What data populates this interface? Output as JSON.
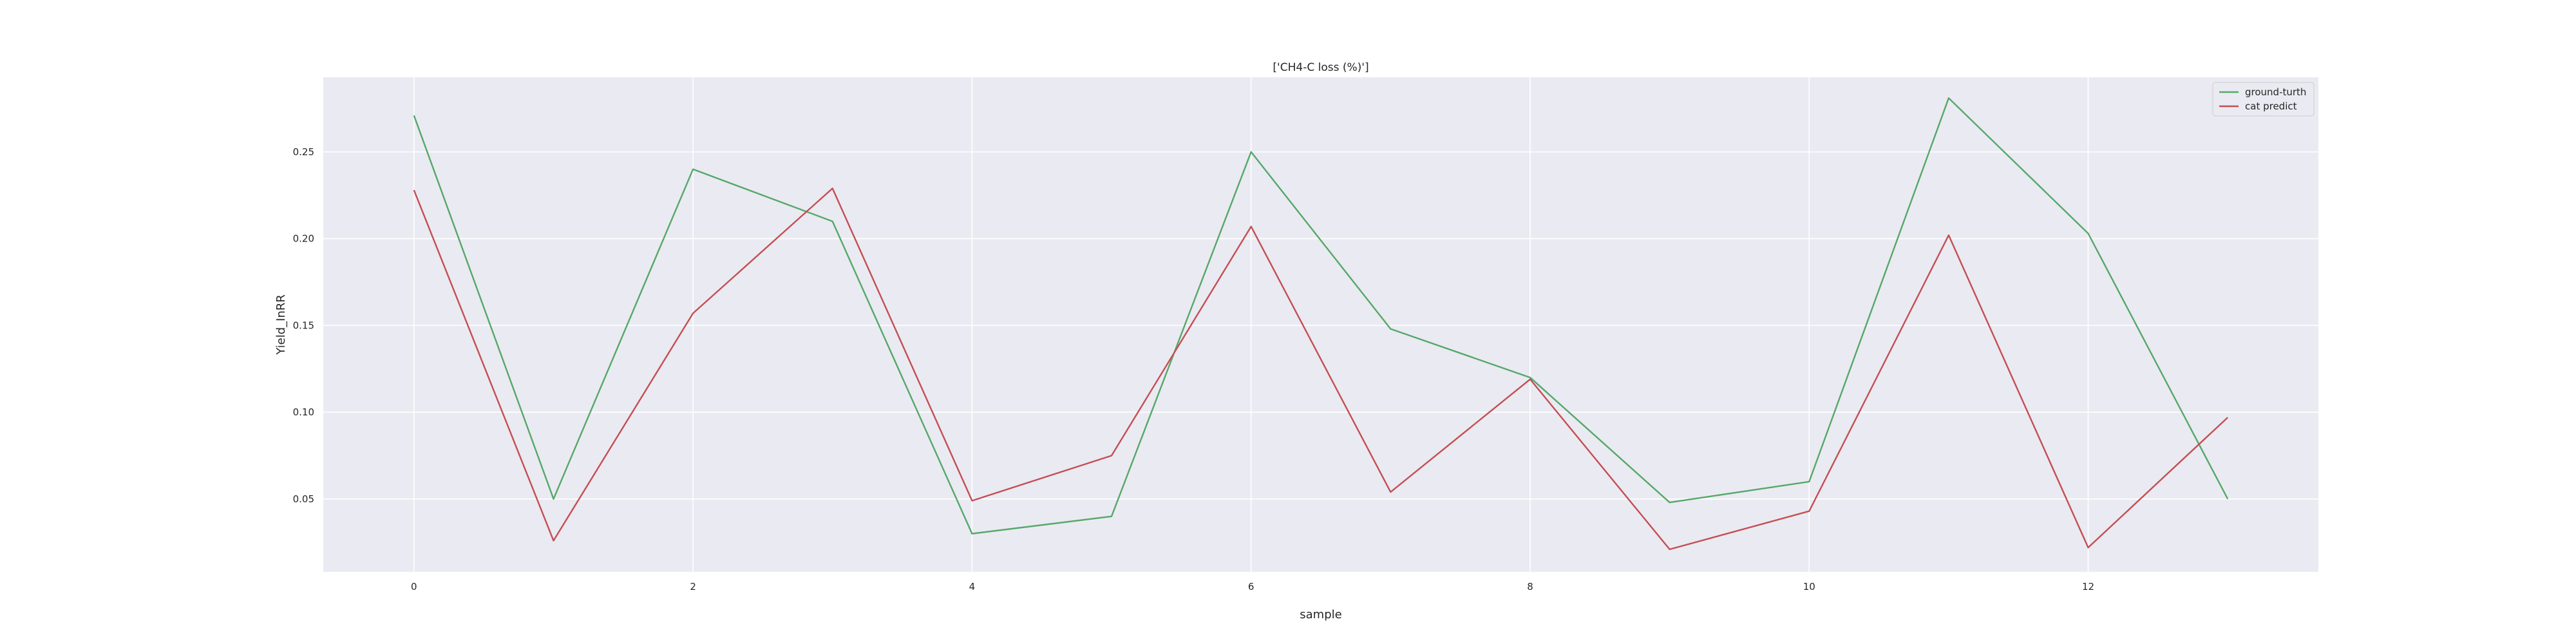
{
  "chart_data": {
    "type": "line",
    "title": "['CH4-C loss (%)']",
    "xlabel": "sample",
    "ylabel": "Yield_InRR",
    "xlim": [
      -0.65,
      13.65
    ],
    "ylim": [
      0.008,
      0.293
    ],
    "xticks": [
      0,
      2,
      4,
      6,
      8,
      10,
      12
    ],
    "xtick_labels": [
      "0",
      "2",
      "4",
      "6",
      "8",
      "10",
      "12"
    ],
    "yticks": [
      0.05,
      0.1,
      0.15,
      0.2,
      0.25
    ],
    "ytick_labels": [
      "0.05",
      "0.10",
      "0.15",
      "0.20",
      "0.25"
    ],
    "grid": true,
    "legend_position": "top-right",
    "x": [
      0,
      1,
      2,
      3,
      4,
      5,
      6,
      7,
      8,
      9,
      10,
      11,
      12,
      13
    ],
    "series": [
      {
        "name": "ground-turth",
        "color": "#55a868",
        "values": [
          0.271,
          0.05,
          0.24,
          0.21,
          0.03,
          0.04,
          0.25,
          0.148,
          0.12,
          0.048,
          0.06,
          0.281,
          0.203,
          0.05
        ]
      },
      {
        "name": "cat predict",
        "color": "#c44e52",
        "values": [
          0.228,
          0.026,
          0.157,
          0.229,
          0.049,
          0.075,
          0.207,
          0.054,
          0.119,
          0.021,
          0.043,
          0.202,
          0.022,
          0.097
        ]
      }
    ],
    "background_color": "#eaeaf2",
    "grid_color": "#ffffff"
  }
}
